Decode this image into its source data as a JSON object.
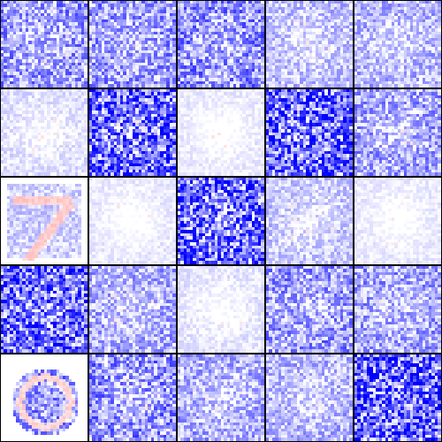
{
  "grid": {
    "rows": 5,
    "cols": 5
  },
  "colors": {
    "background": "#ffffff",
    "border": "#000000",
    "negative": "#0000ff",
    "positive": "#ff0000",
    "neutral": "#ffffff"
  },
  "tiles": [
    {
      "intensity": 0.55,
      "pattern": "blue-noise"
    },
    {
      "intensity": 0.55,
      "pattern": "blue-noise"
    },
    {
      "intensity": 0.6,
      "pattern": "blue-noise"
    },
    {
      "intensity": 0.35,
      "pattern": "blue-noise"
    },
    {
      "intensity": 0.4,
      "pattern": "blue-noise"
    },
    {
      "intensity": 0.18,
      "pattern": "blue-noise"
    },
    {
      "intensity": 0.9,
      "pattern": "blue-noise"
    },
    {
      "intensity": 0.12,
      "pattern": "blue-noise"
    },
    {
      "intensity": 0.9,
      "pattern": "blue-noise"
    },
    {
      "intensity": 0.5,
      "pattern": "blue-noise"
    },
    {
      "intensity": 0.2,
      "pattern": "digit-seven"
    },
    {
      "intensity": 0.12,
      "pattern": "blue-noise"
    },
    {
      "intensity": 0.9,
      "pattern": "blue-noise"
    },
    {
      "intensity": 0.3,
      "pattern": "blue-noise"
    },
    {
      "intensity": 0.12,
      "pattern": "blue-noise"
    },
    {
      "intensity": 0.85,
      "pattern": "blue-noise"
    },
    {
      "intensity": 0.45,
      "pattern": "blue-noise"
    },
    {
      "intensity": 0.15,
      "pattern": "blue-noise"
    },
    {
      "intensity": 0.55,
      "pattern": "blue-noise"
    },
    {
      "intensity": 0.5,
      "pattern": "blue-noise"
    },
    {
      "intensity": 0.4,
      "pattern": "digit-ring"
    },
    {
      "intensity": 0.6,
      "pattern": "blue-noise"
    },
    {
      "intensity": 0.45,
      "pattern": "blue-noise"
    },
    {
      "intensity": 0.4,
      "pattern": "blue-noise"
    },
    {
      "intensity": 0.95,
      "pattern": "blue-noise"
    }
  ]
}
